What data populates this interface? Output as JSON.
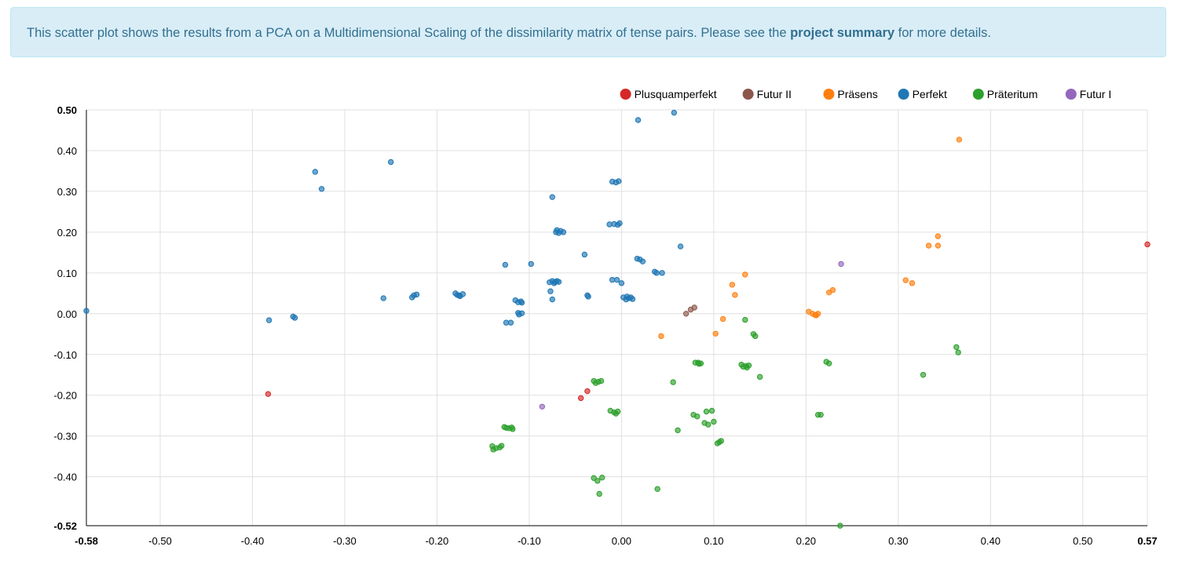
{
  "alert": {
    "text_before": "This scatter plot shows the results from a PCA on a Multidimensional Scaling of the dissimilarity matrix of tense pairs. Please see the ",
    "link_text": "project summary",
    "text_after": " for more details."
  },
  "chart_data": {
    "type": "scatter",
    "title": "",
    "xlabel": "",
    "ylabel": "",
    "xlim": [
      -0.58,
      0.57
    ],
    "ylim": [
      -0.52,
      0.5
    ],
    "x_ticks": [
      "-0.58",
      "-0.50",
      "-0.40",
      "-0.30",
      "-0.20",
      "-0.10",
      "0.00",
      "0.10",
      "0.20",
      "0.30",
      "0.40",
      "0.50",
      "0.57"
    ],
    "x_tick_values": [
      -0.58,
      -0.5,
      -0.4,
      -0.3,
      -0.2,
      -0.1,
      0.0,
      0.1,
      0.2,
      0.3,
      0.4,
      0.5,
      0.57
    ],
    "y_ticks": [
      "0.50",
      "0.40",
      "0.30",
      "0.20",
      "0.10",
      "0.00",
      "-0.10",
      "-0.20",
      "-0.30",
      "-0.40",
      "-0.52"
    ],
    "y_tick_values": [
      0.5,
      0.4,
      0.3,
      0.2,
      0.1,
      0.0,
      -0.1,
      -0.2,
      -0.3,
      -0.4,
      -0.52
    ],
    "grid": true,
    "legend_position": "top-right",
    "series": [
      {
        "name": "Plusquamperfekt",
        "color": "#d62728",
        "points": [
          [
            0.57,
            0.17
          ],
          [
            -0.383,
            -0.197
          ],
          [
            -0.037,
            -0.19
          ],
          [
            -0.044,
            -0.207
          ]
        ]
      },
      {
        "name": "Futur II",
        "color": "#8c564b",
        "points": [
          [
            0.07,
            0.0
          ],
          [
            0.075,
            0.01
          ],
          [
            0.079,
            0.015
          ]
        ]
      },
      {
        "name": "Präsens",
        "color": "#ff7f0e",
        "points": [
          [
            0.366,
            0.427
          ],
          [
            0.343,
            0.19
          ],
          [
            0.333,
            0.167
          ],
          [
            0.343,
            0.167
          ],
          [
            0.308,
            0.082
          ],
          [
            0.315,
            0.075
          ],
          [
            0.134,
            0.096
          ],
          [
            0.12,
            0.071
          ],
          [
            0.123,
            0.046
          ],
          [
            0.229,
            0.058
          ],
          [
            0.225,
            0.052
          ],
          [
            0.203,
            0.005
          ],
          [
            0.207,
            0.0
          ],
          [
            0.21,
            -0.003
          ],
          [
            0.213,
            0.0
          ],
          [
            0.211,
            -0.004
          ],
          [
            0.11,
            -0.013
          ],
          [
            0.102,
            -0.049
          ],
          [
            0.043,
            -0.055
          ]
        ]
      },
      {
        "name": "Perfekt",
        "color": "#1f77b4",
        "points": [
          [
            0.057,
            0.493
          ],
          [
            0.018,
            0.475
          ],
          [
            -0.25,
            0.372
          ],
          [
            -0.332,
            0.348
          ],
          [
            -0.325,
            0.306
          ],
          [
            -0.01,
            0.324
          ],
          [
            -0.006,
            0.322
          ],
          [
            -0.003,
            0.325
          ],
          [
            -0.075,
            0.286
          ],
          [
            -0.07,
            0.205
          ],
          [
            -0.066,
            0.203
          ],
          [
            -0.063,
            0.2
          ],
          [
            -0.068,
            0.198
          ],
          [
            -0.071,
            0.2
          ],
          [
            -0.013,
            0.219
          ],
          [
            -0.008,
            0.22
          ],
          [
            -0.004,
            0.218
          ],
          [
            -0.002,
            0.222
          ],
          [
            0.064,
            0.165
          ],
          [
            -0.04,
            0.145
          ],
          [
            0.017,
            0.135
          ],
          [
            0.02,
            0.133
          ],
          [
            0.023,
            0.128
          ],
          [
            -0.126,
            0.12
          ],
          [
            -0.098,
            0.122
          ],
          [
            0.036,
            0.103
          ],
          [
            0.038,
            0.1
          ],
          [
            0.044,
            0.1
          ],
          [
            -0.01,
            0.083
          ],
          [
            -0.005,
            0.083
          ],
          [
            0.0,
            0.075
          ],
          [
            -0.078,
            0.077
          ],
          [
            -0.075,
            0.08
          ],
          [
            -0.072,
            0.078
          ],
          [
            -0.07,
            0.08
          ],
          [
            -0.068,
            0.078
          ],
          [
            -0.073,
            0.075
          ],
          [
            -0.077,
            0.055
          ],
          [
            -0.075,
            0.035
          ],
          [
            -0.18,
            0.05
          ],
          [
            -0.176,
            0.045
          ],
          [
            -0.172,
            0.048
          ],
          [
            -0.175,
            0.043
          ],
          [
            -0.178,
            0.046
          ],
          [
            -0.225,
            0.045
          ],
          [
            -0.222,
            0.047
          ],
          [
            -0.227,
            0.04
          ],
          [
            -0.258,
            0.038
          ],
          [
            -0.037,
            0.045
          ],
          [
            -0.036,
            0.042
          ],
          [
            0.002,
            0.04
          ],
          [
            0.005,
            0.035
          ],
          [
            0.008,
            0.038
          ],
          [
            0.01,
            0.04
          ],
          [
            0.012,
            0.036
          ],
          [
            0.006,
            0.042
          ],
          [
            -0.115,
            0.033
          ],
          [
            -0.112,
            0.028
          ],
          [
            -0.109,
            0.03
          ],
          [
            -0.108,
            0.027
          ],
          [
            -0.112,
            0.002
          ],
          [
            -0.108,
            0.001
          ],
          [
            -0.111,
            -0.002
          ],
          [
            -0.125,
            -0.022
          ],
          [
            -0.12,
            -0.022
          ],
          [
            -0.58,
            0.007
          ],
          [
            -0.382,
            -0.016
          ],
          [
            -0.356,
            -0.007
          ],
          [
            -0.354,
            -0.01
          ]
        ]
      },
      {
        "name": "Präteritum",
        "color": "#2ca02c",
        "points": [
          [
            0.134,
            -0.015
          ],
          [
            0.143,
            -0.05
          ],
          [
            0.145,
            -0.055
          ],
          [
            0.13,
            -0.125
          ],
          [
            0.135,
            -0.128
          ],
          [
            0.138,
            -0.127
          ],
          [
            0.132,
            -0.13
          ],
          [
            0.136,
            -0.132
          ],
          [
            0.08,
            -0.12
          ],
          [
            0.083,
            -0.12
          ],
          [
            0.086,
            -0.122
          ],
          [
            0.084,
            -0.123
          ],
          [
            0.15,
            -0.155
          ],
          [
            0.056,
            -0.168
          ],
          [
            0.222,
            -0.118
          ],
          [
            0.225,
            -0.122
          ],
          [
            0.327,
            -0.15
          ],
          [
            0.363,
            -0.082
          ],
          [
            0.365,
            -0.095
          ],
          [
            -0.03,
            -0.165
          ],
          [
            -0.025,
            -0.167
          ],
          [
            -0.022,
            -0.165
          ],
          [
            -0.028,
            -0.17
          ],
          [
            -0.012,
            -0.238
          ],
          [
            -0.008,
            -0.242
          ],
          [
            -0.004,
            -0.24
          ],
          [
            -0.006,
            -0.245
          ],
          [
            0.078,
            -0.248
          ],
          [
            0.082,
            -0.252
          ],
          [
            0.092,
            -0.24
          ],
          [
            0.098,
            -0.238
          ],
          [
            0.09,
            -0.268
          ],
          [
            0.094,
            -0.272
          ],
          [
            0.1,
            -0.265
          ],
          [
            0.213,
            -0.248
          ],
          [
            0.216,
            -0.248
          ],
          [
            0.061,
            -0.286
          ],
          [
            -0.127,
            -0.278
          ],
          [
            -0.122,
            -0.281
          ],
          [
            -0.118,
            -0.283
          ],
          [
            -0.125,
            -0.28
          ],
          [
            -0.119,
            -0.279
          ],
          [
            -0.14,
            -0.325
          ],
          [
            -0.136,
            -0.33
          ],
          [
            -0.132,
            -0.328
          ],
          [
            -0.13,
            -0.324
          ],
          [
            -0.139,
            -0.333
          ],
          [
            0.104,
            -0.318
          ],
          [
            0.106,
            -0.315
          ],
          [
            0.108,
            -0.312
          ],
          [
            -0.03,
            -0.403
          ],
          [
            -0.026,
            -0.41
          ],
          [
            -0.021,
            -0.402
          ],
          [
            -0.024,
            -0.442
          ],
          [
            0.039,
            -0.43
          ],
          [
            0.237,
            -0.52
          ]
        ]
      },
      {
        "name": "Futur I",
        "color": "#9467bd",
        "points": [
          [
            0.238,
            0.122
          ],
          [
            -0.086,
            -0.228
          ]
        ]
      }
    ]
  }
}
